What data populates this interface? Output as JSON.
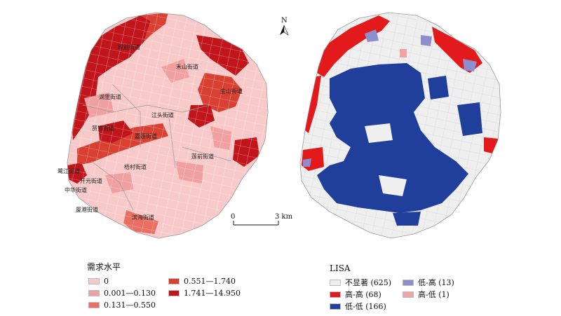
{
  "north": "N",
  "scale": {
    "zero": "0",
    "distance": "3 km"
  },
  "streets": [
    {
      "name": "殿前街道"
    },
    {
      "name": "禾山街道"
    },
    {
      "name": "湖里街道"
    },
    {
      "name": "金山街道"
    },
    {
      "name": "江头街道"
    },
    {
      "name": "筼筜街道"
    },
    {
      "name": "嘉莲街道"
    },
    {
      "name": "莲前街道"
    },
    {
      "name": "梧村街道"
    },
    {
      "name": "鹭江街道"
    },
    {
      "name": "开元街道"
    },
    {
      "name": "中华街道"
    },
    {
      "name": "厦港街道"
    },
    {
      "name": "滨海街道"
    }
  ],
  "demand_legend": {
    "title": "需求水平",
    "classes": [
      {
        "label": "0",
        "color": "#f7c9c9"
      },
      {
        "label": "0.001—0.130",
        "color": "#f0a0a0"
      },
      {
        "label": "0.131—0.550",
        "color": "#e86f61"
      },
      {
        "label": "0.551—1.740",
        "color": "#d84032"
      },
      {
        "label": "1.741—14.950",
        "color": "#c0151b"
      }
    ]
  },
  "lisa_legend": {
    "title": "LISA",
    "classes": [
      {
        "label": "不显著 (625)",
        "color": "#efefef"
      },
      {
        "label": "高-高 (68)",
        "color": "#e31a1c"
      },
      {
        "label": "低-低 (166)",
        "color": "#1f3f9a"
      },
      {
        "label": "低-高 (13)",
        "color": "#8e8ecf"
      },
      {
        "label": "高-低 (1)",
        "color": "#f1a3a3"
      }
    ]
  }
}
